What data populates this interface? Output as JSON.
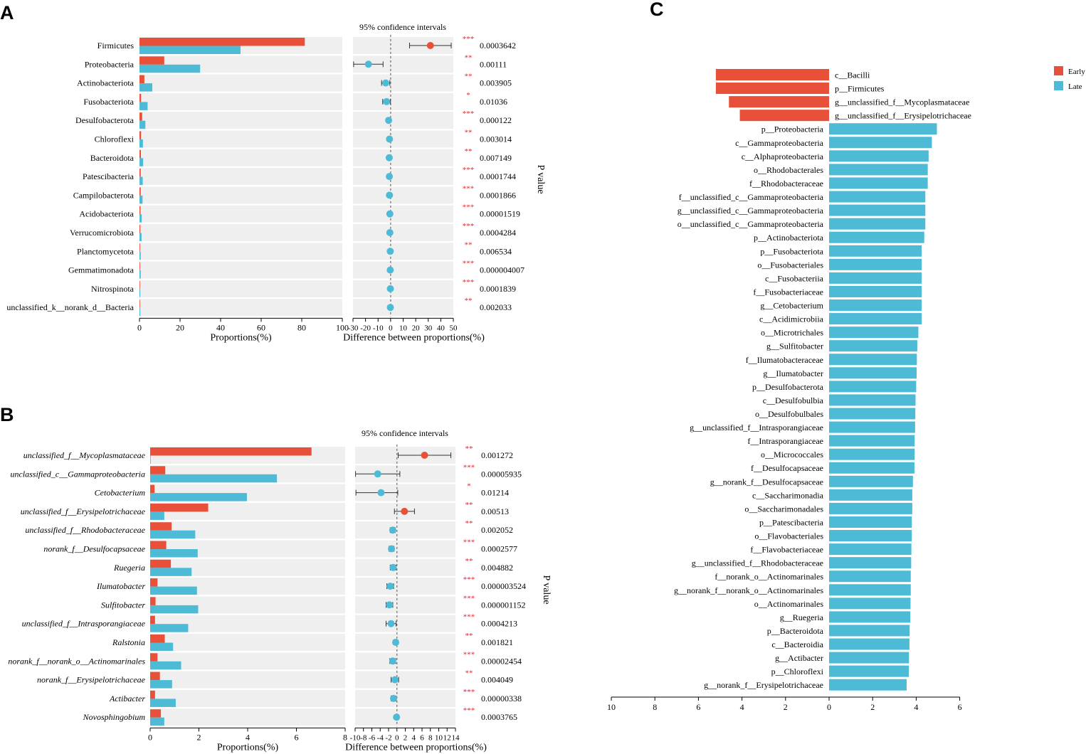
{
  "colors": {
    "early": "#E8503A",
    "late": "#4DBBD5",
    "bg": "#EFEFEF",
    "axis": "#000000",
    "sig": "#E8202A",
    "dash": "#777777"
  },
  "chart_data": [
    {
      "panel": "A",
      "type": "bar",
      "ci_title": "95% confidence intervals",
      "pvalue_label": "P value",
      "xlabel_left": "Proportions(%)",
      "xlabel_right": "Difference between proportions(%)",
      "left_xlim": [
        0,
        100
      ],
      "left_ticks": [
        "0",
        "20",
        "40",
        "60",
        "80",
        "100"
      ],
      "right_xlim": [
        -30,
        50
      ],
      "right_ticks": [
        "-30",
        "-20",
        "-10",
        "0",
        "10",
        "20",
        "30",
        "40",
        "50"
      ],
      "categories": [
        "Firmicutes",
        "Proteobacteria",
        "Actinobacteriota",
        "Fusobacteriota",
        "Desulfobacterota",
        "Chloroflexi",
        "Bacteroidota",
        "Patescibacteria",
        "Campilobacterota",
        "Acidobacteriota",
        "Verrucomicrobiota",
        "Planctomycetota",
        "Gemmatimonadota",
        "Nitrospinota",
        "unclassified_k__norank_d__Bacteria"
      ],
      "early": [
        81.5,
        12.2,
        2.4,
        0.8,
        1.3,
        0.8,
        0.7,
        0.6,
        0.6,
        0.5,
        0.4,
        0.3,
        0.3,
        0.2,
        0.2
      ],
      "late": [
        49.8,
        29.9,
        6.3,
        4.0,
        2.9,
        1.7,
        1.8,
        1.6,
        1.5,
        1.1,
        1.0,
        0.6,
        0.6,
        0.4,
        0.4
      ],
      "diff": [
        31.7,
        -17.7,
        -3.9,
        -3.2,
        -1.6,
        -0.9,
        -1.1,
        -1.0,
        -0.9,
        -0.6,
        -0.6,
        -0.3,
        -0.3,
        -0.2,
        -0.2
      ],
      "ci_low": [
        15.1,
        -29.5,
        -7.2,
        -6.3,
        -3.0,
        -1.6,
        -2.2,
        -1.9,
        -1.7,
        -1.2,
        -1.1,
        -0.7,
        -0.6,
        -0.4,
        -0.4
      ],
      "ci_high": [
        48.3,
        -6.0,
        -0.6,
        -0.1,
        -0.2,
        -0.2,
        -0.0,
        -0.1,
        -0.1,
        0.0,
        0.0,
        0.1,
        0.0,
        0.0,
        0.0
      ],
      "sig": [
        "***",
        "**",
        "**",
        "*",
        "***",
        "**",
        "**",
        "***",
        "***",
        "***",
        "***",
        "**",
        "***",
        "***",
        "**"
      ],
      "pvalues": [
        "0.0003642",
        "0.00111",
        "0.003905",
        "0.01036",
        "0.000122",
        "0.003014",
        "0.007149",
        "0.0001744",
        "0.0001866",
        "0.00001519",
        "0.0004284",
        "0.006534",
        "0.000004007",
        "0.0001839",
        "0.002033"
      ]
    },
    {
      "panel": "B",
      "type": "bar",
      "ci_title": "95% confidence intervals",
      "pvalue_label": "P value",
      "xlabel_left": "Proportions(%)",
      "xlabel_right": "Difference between proportions(%)",
      "left_xlim": [
        0,
        8
      ],
      "left_ticks": [
        "0",
        "2",
        "4",
        "6",
        "8"
      ],
      "right_xlim": [
        -10,
        14
      ],
      "right_ticks": [
        "-10",
        "-8",
        "-6",
        "-4",
        "-2",
        "0",
        "2",
        "4",
        "6",
        "8",
        "10",
        "12",
        "14"
      ],
      "categories": [
        "unclassified_f__Mycoplasmataceae",
        "unclassified_c__Gammaproteobacteria",
        "Cetobacterium",
        "unclassified_f__Erysipelotrichaceae",
        "unclassified_f__Rhodobacteraceae",
        "norank_f__Desulfocapsaceae",
        "Ruegeria",
        "Ilumatobacter",
        "Sulfitobacter",
        "unclassified_f__Intrasporangiaceae",
        "Ralstonia",
        "norank_f__norank_o__Actinomarinales",
        "norank_f__Erysipelotrichaceae",
        "Actibacter",
        "Novosphingobium"
      ],
      "early": [
        6.62,
        0.62,
        0.18,
        2.38,
        0.88,
        0.66,
        0.85,
        0.3,
        0.22,
        0.2,
        0.6,
        0.3,
        0.4,
        0.2,
        0.44
      ],
      "late": [
        0.02,
        5.2,
        3.97,
        0.58,
        1.85,
        1.95,
        1.7,
        1.92,
        1.97,
        1.56,
        0.94,
        1.27,
        0.9,
        1.05,
        0.58
      ],
      "diff": [
        6.6,
        -4.6,
        -3.8,
        1.8,
        -1.0,
        -1.3,
        -0.9,
        -1.6,
        -1.8,
        -1.4,
        -0.3,
        -1.0,
        -0.5,
        -0.8,
        -0.1
      ],
      "ci_low": [
        0.3,
        -9.9,
        -9.8,
        -0.6,
        -1.6,
        -1.9,
        -1.6,
        -2.4,
        -2.6,
        -2.6,
        -0.8,
        -1.7,
        -1.4,
        -1.4,
        -0.4
      ],
      "ci_high": [
        12.9,
        0.7,
        0.2,
        4.2,
        -0.4,
        -0.7,
        -0.2,
        -0.8,
        -1.0,
        -0.2,
        0.2,
        -0.3,
        0.4,
        -0.2,
        0.4
      ],
      "sig": [
        "**",
        "***",
        "*",
        "**",
        "**",
        "***",
        "**",
        "***",
        "***",
        "***",
        "**",
        "***",
        "**",
        "***",
        "***"
      ],
      "pvalues": [
        "0.001272",
        "0.00005935",
        "0.01214",
        "0.00513",
        "0.002052",
        "0.0002577",
        "0.004882",
        "0.000003524",
        "0.000001152",
        "0.0004213",
        "0.001821",
        "0.00002454",
        "0.004049",
        "0.00000338",
        "0.0003765"
      ]
    },
    {
      "panel": "C",
      "type": "bar",
      "orientation": "diverging-horizontal",
      "xlim": [
        -10,
        6
      ],
      "ticks": [
        "10",
        "8",
        "6",
        "4",
        "2",
        "0",
        "2",
        "4",
        "6"
      ],
      "legend": [
        "Early",
        "Late"
      ],
      "categories": [
        "c__Bacilli",
        "p__Firmicutes",
        "g__unclassified_f__Mycoplasmataceae",
        "g__unclassified_f__Erysipelotrichaceae",
        "p__Proteobacteria",
        "c__Gammaproteobacteria",
        "c__Alphaproteobacteria",
        "o__Rhodobacterales",
        "f__Rhodobacteraceae",
        "f__unclassified_c__Gammaproteobacteria",
        "g__unclassified_c__Gammaproteobacteria",
        "o__unclassified_c__Gammaproteobacteria",
        "p__Actinobacteriota",
        "p__Fusobacteriota",
        "o__Fusobacteriales",
        "c__Fusobacteriia",
        "f__Fusobacteriaceae",
        "g__Cetobacterium",
        "c__Acidimicrobiia",
        "o__Microtrichales",
        "g__Sulfitobacter",
        "f__Ilumatobacteraceae",
        "g__Ilumatobacter",
        "p__Desulfobacterota",
        "c__Desulfobulbia",
        "o__Desulfobulbales",
        "g__unclassified_f__Intrasporangiaceae",
        "f__Intrasporangiaceae",
        "o__Micrococcales",
        "f__Desulfocapsaceae",
        "g__norank_f__Desulfocapsaceae",
        "c__Saccharimonadia",
        "o__Saccharimonadales",
        "p__Patescibacteria",
        "o__Flavobacteriales",
        "f__Flavobacteriaceae",
        "g__unclassified_f__Rhodobacteraceae",
        "f__norank_o__Actinomarinales",
        "g__norank_f__norank_o__Actinomarinales",
        "o__Actinomarinales",
        "g__Ruegeria",
        "p__Bacteroidota",
        "c__Bacteroidia",
        "g__Actibacter",
        "p__Chloroflexi",
        "g__norank_f__Erysipelotrichaceae"
      ],
      "groups": [
        "Early",
        "Early",
        "Early",
        "Early",
        "Late",
        "Late",
        "Late",
        "Late",
        "Late",
        "Late",
        "Late",
        "Late",
        "Late",
        "Late",
        "Late",
        "Late",
        "Late",
        "Late",
        "Late",
        "Late",
        "Late",
        "Late",
        "Late",
        "Late",
        "Late",
        "Late",
        "Late",
        "Late",
        "Late",
        "Late",
        "Late",
        "Late",
        "Late",
        "Late",
        "Late",
        "Late",
        "Late",
        "Late",
        "Late",
        "Late",
        "Late",
        "Late",
        "Late",
        "Late",
        "Late",
        "Late"
      ],
      "values": [
        5.2,
        5.2,
        4.6,
        4.1,
        4.95,
        4.72,
        4.57,
        4.53,
        4.53,
        4.42,
        4.42,
        4.42,
        4.37,
        4.25,
        4.25,
        4.25,
        4.25,
        4.25,
        4.25,
        4.1,
        4.05,
        4.03,
        4.02,
        4.0,
        3.97,
        3.96,
        3.95,
        3.93,
        3.93,
        3.92,
        3.85,
        3.82,
        3.82,
        3.8,
        3.8,
        3.78,
        3.77,
        3.75,
        3.75,
        3.74,
        3.73,
        3.7,
        3.69,
        3.67,
        3.66,
        3.56
      ]
    }
  ],
  "panel_labels": [
    "A",
    "B",
    "C"
  ]
}
